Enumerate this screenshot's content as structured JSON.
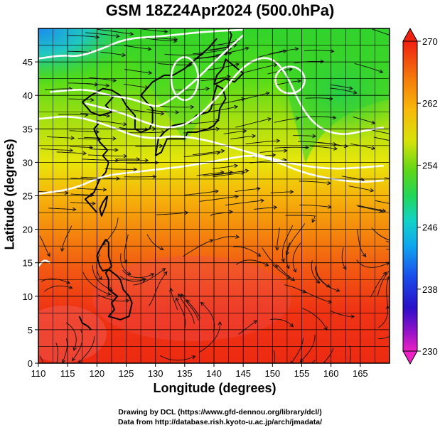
{
  "title": "GSM 18Z24Apr2024 (500.0hPa)",
  "chart_data": {
    "type": "heatmap",
    "title": "GSM 18Z24Apr2024 (500.0hPa)",
    "xlabel": "Longitude (degrees)",
    "ylabel": "Latitude  (degrees)",
    "xlim": [
      110,
      170
    ],
    "ylim": [
      0,
      50
    ],
    "x_ticks": [
      "110",
      "115",
      "120",
      "125",
      "130",
      "135",
      "140",
      "145",
      "150",
      "155",
      "160",
      "165"
    ],
    "y_ticks": [
      "0",
      "5",
      "10",
      "15",
      "20",
      "25",
      "30",
      "35",
      "40",
      "45"
    ],
    "grid": true,
    "colorbar": {
      "min": 230,
      "max": 270,
      "ticks": [
        "270",
        "262",
        "254",
        "246",
        "238",
        "230"
      ],
      "placement": "right"
    },
    "contours": [
      {
        "name": "trough-north",
        "points": [
          [
            110,
            45.5
          ],
          [
            114,
            46
          ],
          [
            117,
            45.8
          ],
          [
            121,
            47
          ],
          [
            125,
            48.5
          ],
          [
            131,
            48.8
          ],
          [
            138,
            49.5
          ],
          [
            145,
            49.8
          ]
        ]
      },
      {
        "name": "trough-ridge",
        "points": [
          [
            112,
            40.5
          ],
          [
            118,
            41
          ],
          [
            122,
            40
          ],
          [
            126,
            39.5
          ],
          [
            129,
            38.5
          ],
          [
            131,
            38.3
          ],
          [
            136,
            41.5
          ],
          [
            140,
            45
          ],
          [
            145,
            49
          ]
        ]
      },
      {
        "name": "ridge-east",
        "points": [
          [
            118,
            38.8
          ],
          [
            124,
            37.5
          ],
          [
            128,
            36
          ],
          [
            132,
            35
          ],
          [
            136,
            35.8
          ],
          [
            141,
            40
          ],
          [
            145,
            44.5
          ],
          [
            149,
            46
          ],
          [
            152,
            44
          ],
          [
            155,
            38
          ],
          [
            158,
            35
          ],
          [
            162,
            34
          ],
          [
            166,
            34.8
          ],
          [
            169,
            35.2
          ]
        ]
      },
      {
        "name": "mid-lat",
        "points": [
          [
            110,
            36.5
          ],
          [
            116,
            37
          ],
          [
            122,
            35.5
          ],
          [
            126,
            34
          ],
          [
            130,
            33.5
          ],
          [
            133,
            34
          ],
          [
            138,
            33.5
          ],
          [
            144,
            32
          ],
          [
            150,
            30.5
          ],
          [
            155,
            29.5
          ],
          [
            160,
            29
          ],
          [
            165,
            29.2
          ],
          [
            169,
            29.5
          ]
        ]
      },
      {
        "name": "southern",
        "points": [
          [
            110,
            25.3
          ],
          [
            116,
            26
          ],
          [
            121,
            28
          ],
          [
            126,
            28.5
          ],
          [
            131,
            29
          ],
          [
            136,
            29.5
          ],
          [
            142,
            30.5
          ],
          [
            147,
            31.2
          ],
          [
            151,
            30
          ],
          [
            155,
            28.5
          ],
          [
            160,
            27.5
          ],
          [
            165,
            27
          ],
          [
            169,
            27.3
          ]
        ]
      },
      {
        "name": "subtropical",
        "points": [
          [
            110,
            14.5
          ],
          [
            111,
            15.5
          ],
          [
            112,
            15
          ]
        ]
      }
    ],
    "closed_lows": [
      {
        "center": [
          135,
          42.5
        ],
        "radius_deg": [
          2.3,
          3.2
        ]
      },
      {
        "center": [
          153,
          42.3
        ],
        "radius_deg": [
          2.5,
          2.0
        ]
      }
    ]
  }
}
